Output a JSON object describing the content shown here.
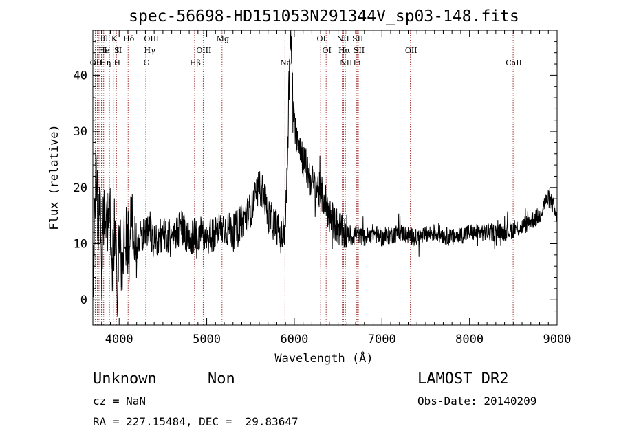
{
  "chart_data": {
    "type": "line",
    "title": "spec-56698-HD151053N291344V_sp03-148.fits",
    "xlabel": "Wavelength (Å)",
    "ylabel": "Flux (relative)",
    "xlim": [
      3700,
      9000
    ],
    "ylim": [
      -4.5,
      48
    ],
    "x_ticks": [
      4000,
      5000,
      6000,
      7000,
      8000,
      9000
    ],
    "y_ticks": [
      0,
      10,
      20,
      30,
      40
    ],
    "grid": false,
    "legend": "none",
    "series": [
      {
        "x": [
          3700,
          3720,
          3740,
          3760,
          3780,
          3800,
          3830,
          3860,
          3890,
          3920,
          3950,
          3980,
          4000,
          4030,
          4060,
          4100,
          4150,
          4200,
          4250,
          4300,
          4350,
          4400,
          4500,
          4600,
          4700,
          4800,
          4900,
          5000,
          5100,
          5200,
          5300,
          5400,
          5500,
          5550,
          5600,
          5650,
          5700,
          5750,
          5800,
          5850,
          5880,
          5900,
          5920,
          5940,
          5960,
          5980,
          6000,
          6050,
          6100,
          6150,
          6200,
          6250,
          6300,
          6350,
          6400,
          6450,
          6500,
          6550,
          6600,
          6650,
          6700,
          6800,
          6900,
          7000,
          7200,
          7400,
          7600,
          7800,
          8000,
          8200,
          8400,
          8600,
          8700,
          8800,
          8850,
          8900,
          8950,
          9000
        ],
        "y": [
          1,
          16,
          24,
          13,
          19,
          8,
          16,
          12,
          18,
          4,
          14,
          2,
          10,
          6,
          13,
          10,
          14,
          8,
          12,
          11,
          13,
          10,
          12,
          11,
          13,
          11,
          12,
          11,
          12,
          13,
          12,
          14,
          16,
          18,
          20,
          19,
          15,
          14,
          13,
          11,
          12,
          14,
          24,
          40,
          47,
          38,
          30,
          29,
          25,
          23,
          21,
          20,
          19,
          18,
          15,
          14,
          13,
          12,
          12,
          11,
          12,
          11,
          12,
          11,
          12,
          11,
          12,
          11,
          12,
          12,
          12,
          13,
          14,
          15,
          17,
          18,
          17,
          14
        ]
      }
    ],
    "lines": [
      {
        "label": "Hθ",
        "x": 3798,
        "row": 0
      },
      {
        "label": "OII",
        "x": 3727,
        "row": 2
      },
      {
        "label": "He",
        "x": 3820,
        "row": 1
      },
      {
        "label": "I",
        "x": 3835,
        "row": 1
      },
      {
        "label": "Hη",
        "x": 3835,
        "row": 2
      },
      {
        "label": "K",
        "x": 3934,
        "row": 0
      },
      {
        "label": "S",
        "x": 3965,
        "row": 1
      },
      {
        "label": "II",
        "x": 3990,
        "row": 1
      },
      {
        "label": "H",
        "x": 3969,
        "row": 2
      },
      {
        "label": "Hδ",
        "x": 4102,
        "row": 0
      },
      {
        "label": "OIII",
        "x": 4363,
        "row": 0
      },
      {
        "label": "Hγ",
        "x": 4341,
        "row": 1
      },
      {
        "label": "G",
        "x": 4305,
        "row": 2
      },
      {
        "label": "Hβ",
        "x": 4861,
        "row": 2
      },
      {
        "label": "OIII",
        "x": 4959,
        "row": 1
      },
      {
        "label": "Mg",
        "x": 5175,
        "row": 0
      },
      {
        "label": "Na",
        "x": 5893,
        "row": 2
      },
      {
        "label": "OI",
        "x": 6300,
        "row": 0
      },
      {
        "label": "OI",
        "x": 6363,
        "row": 1
      },
      {
        "label": "NII",
        "x": 6548,
        "row": 0
      },
      {
        "label": "Hα",
        "x": 6563,
        "row": 1
      },
      {
        "label": "NII",
        "x": 6583,
        "row": 2
      },
      {
        "label": "SII",
        "x": 6717,
        "row": 0
      },
      {
        "label": "SII",
        "x": 6731,
        "row": 1
      },
      {
        "label": "Li",
        "x": 6708,
        "row": 2
      },
      {
        "label": "OII",
        "x": 7325,
        "row": 1
      },
      {
        "label": "CaII",
        "x": 8498,
        "row": 2
      }
    ],
    "line_markers_x": [
      3727,
      3750,
      3770,
      3798,
      3820,
      3835,
      3889,
      3934,
      3969,
      4102,
      4305,
      4341,
      4363,
      4861,
      4959,
      5175,
      5893,
      6300,
      6363,
      6548,
      6563,
      6583,
      6708,
      6717,
      6731,
      7325,
      8498
    ]
  },
  "footer": {
    "class_label": "Unknown",
    "subclass_label": "Non",
    "survey_label": "LAMOST DR2",
    "cz_text": "cz = NaN",
    "obs_date_text": "Obs-Date: 20140209",
    "coords_text": "RA = 227.15484, DEC =  29.83647"
  },
  "colors": {
    "spectrum": "#000000",
    "line_markers": "#8b0000",
    "axes": "#000000",
    "background": "#ffffff"
  }
}
